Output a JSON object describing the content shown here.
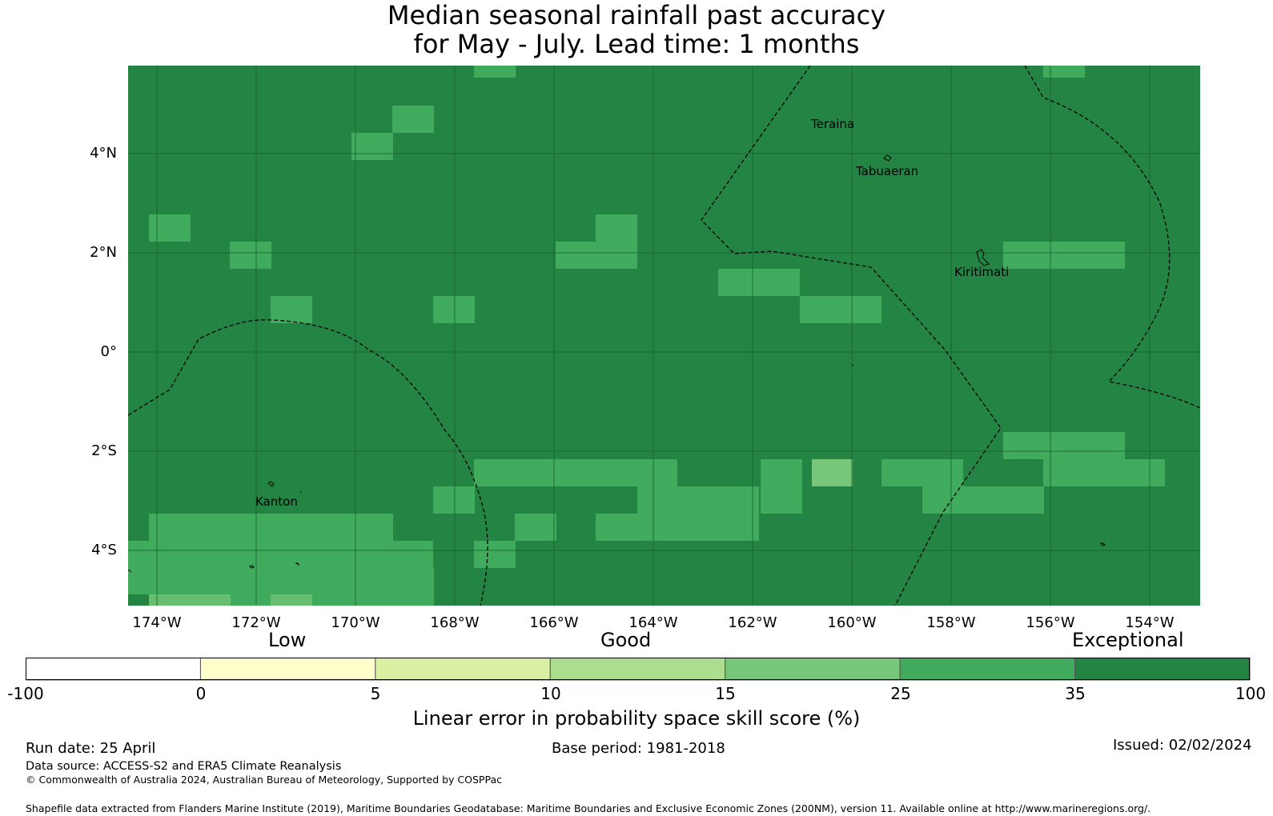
{
  "title_line1": "Median seasonal rainfall past accuracy",
  "title_line2": "for May - July. Lead time: 1 months",
  "map": {
    "lon_labels": [
      "174°W",
      "172°W",
      "170°W",
      "168°W",
      "166°W",
      "164°W",
      "162°W",
      "160°W",
      "158°W",
      "156°W",
      "154°W"
    ],
    "lat_labels": [
      "4°N",
      "2°N",
      "0°",
      "2°S",
      "4°S"
    ],
    "places": [
      "Teraina",
      "Tabuaeran",
      "Kiritimati",
      "Kanton"
    ],
    "base_color": "#238443",
    "patch_color": "#41ab5d",
    "highlight_color": "#78c679"
  },
  "legend": {
    "categories": [
      "Low",
      "Good",
      "Exceptional"
    ],
    "ticks": [
      "-100",
      "0",
      "5",
      "10",
      "15",
      "25",
      "35",
      "100"
    ],
    "colors": [
      "#ffffff",
      "#ffffcc",
      "#d9f0a3",
      "#addd8e",
      "#78c679",
      "#41ab5d",
      "#238443"
    ],
    "axis_title": "Linear error in probability space skill score (%)"
  },
  "footer": {
    "run_date": "Run date: 25 April",
    "base_period": "Base period: 1981-2018",
    "issued": "Issued: 02/02/2024",
    "data_source": "Data source: ACCESS-S2 and ERA5 Climate Reanalysis",
    "copyright": "© Commonwealth of Australia 2024, Australian Bureau of Meteorology, Supported by COSPPac",
    "shapefile": "Shapefile data extracted from Flanders Marine Institute (2019), Maritime Boundaries Geodatabase: Maritime Boundaries and Exclusive Economic Zones (200NM), version 11. Available online at http://www.marineregions.org/."
  }
}
